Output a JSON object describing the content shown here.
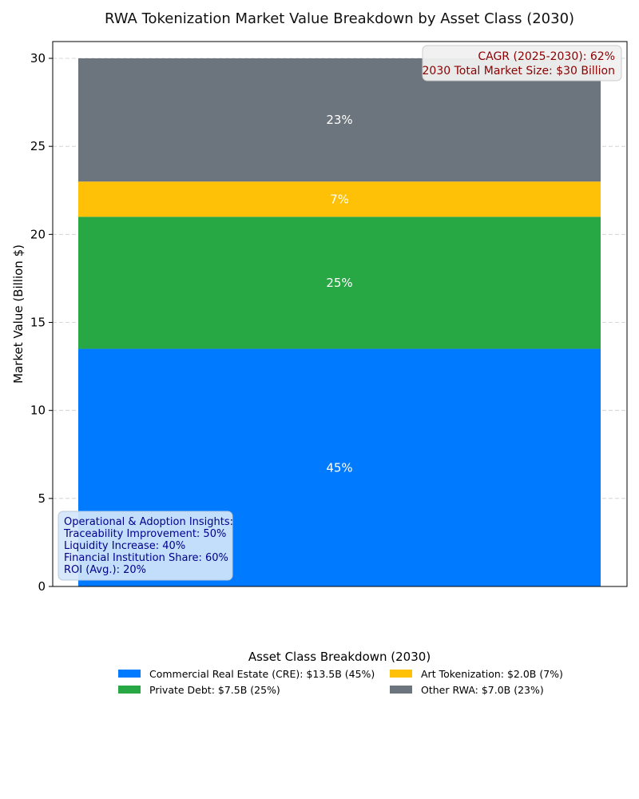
{
  "chart_data": {
    "type": "bar",
    "stacked": true,
    "title": "RWA Tokenization Market Value Breakdown by Asset Class (2030)",
    "ylabel": "Market Value (Billion $)",
    "xlabel": "",
    "ylim": [
      0,
      30
    ],
    "yticks": [
      0,
      5,
      10,
      15,
      20,
      25,
      30
    ],
    "grid": true,
    "series": [
      {
        "name": "Commercial Real Estate (CRE)",
        "value": 13.5,
        "percent_label": "45%",
        "color": "#007bff",
        "legend_label": "Commercial Real Estate (CRE): $13.5B (45%)"
      },
      {
        "name": "Private Debt",
        "value": 7.5,
        "percent_label": "25%",
        "color": "#28a745",
        "legend_label": "Private Debt: $7.5B (25%)"
      },
      {
        "name": "Art Tokenization",
        "value": 2.0,
        "percent_label": "7%",
        "color": "#ffc107",
        "legend_label": "Art Tokenization: $2.0B (7%)"
      },
      {
        "name": "Other RWA",
        "value": 7.0,
        "percent_label": "23%",
        "color": "#6c757d",
        "legend_label": "Other RWA: $7.0B (23%)"
      }
    ],
    "annotations": {
      "top_right": [
        "CAGR (2025-2030): 62%",
        "2030 Total Market Size: $30 Billion"
      ],
      "bottom_left": [
        "Operational & Adoption Insights:",
        "Traceability Improvement: 50%",
        "Liquidity Increase: 40%",
        "Financial Institution Share: 60%",
        "ROI (Avg.): 20%"
      ]
    },
    "legend": {
      "title": "Asset Class Breakdown (2030)",
      "placement": "bottom-center",
      "columns": 2
    }
  }
}
